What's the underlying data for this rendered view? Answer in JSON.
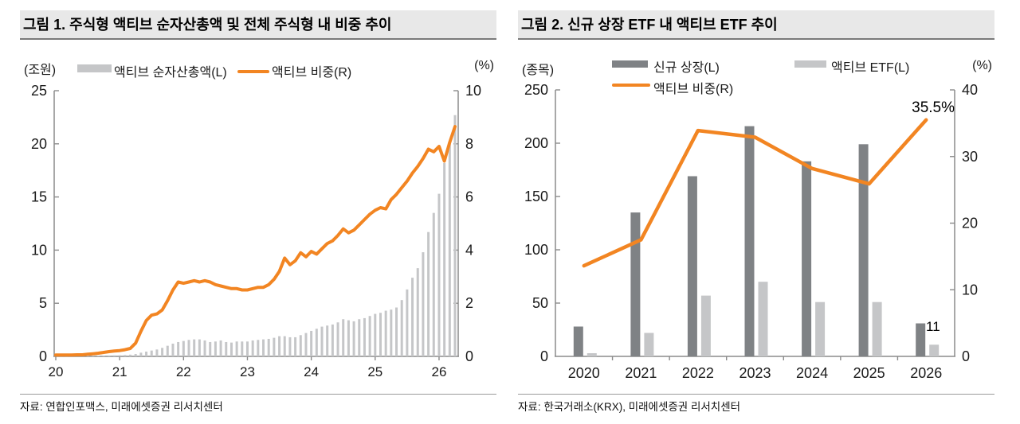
{
  "figure1": {
    "title": "그림 1. 주식형 액티브 순자산총액 및 전체 주식형 내 비중 추이",
    "source": "자료: 연합인포맥스, 미래에셋증권 리서치센터"
  },
  "figure2": {
    "title": "그림 2. 신규 상장 ETF 내 액티브 ETF 추이",
    "source": "자료: 한국거래소(KRX), 미래에셋증권 리서치센터"
  },
  "colors": {
    "orange": "#F28522",
    "light_gray_bar": "#c5c6c8",
    "dark_gray_bar": "#7f8285",
    "axis": "#8b8b8b"
  },
  "chart_data": [
    {
      "type": "bar+line",
      "title": "주식형 액티브 순자산총액 및 전체 주식형 내 비중 추이",
      "x": [
        "2020-01",
        "2020-02",
        "2020-03",
        "2020-04",
        "2020-05",
        "2020-06",
        "2020-07",
        "2020-08",
        "2020-09",
        "2020-10",
        "2020-11",
        "2020-12",
        "2021-01",
        "2021-02",
        "2021-03",
        "2021-04",
        "2021-05",
        "2021-06",
        "2021-07",
        "2021-08",
        "2021-09",
        "2021-10",
        "2021-11",
        "2021-12",
        "2022-01",
        "2022-02",
        "2022-03",
        "2022-04",
        "2022-05",
        "2022-06",
        "2022-07",
        "2022-08",
        "2022-09",
        "2022-10",
        "2022-11",
        "2022-12",
        "2023-01",
        "2023-02",
        "2023-03",
        "2023-04",
        "2023-05",
        "2023-06",
        "2023-07",
        "2023-08",
        "2023-09",
        "2023-10",
        "2023-11",
        "2023-12",
        "2024-01",
        "2024-02",
        "2024-03",
        "2024-04",
        "2024-05",
        "2024-06",
        "2024-07",
        "2024-08",
        "2024-09",
        "2024-10",
        "2024-11",
        "2024-12",
        "2025-01",
        "2025-02",
        "2025-03",
        "2025-04",
        "2025-05",
        "2025-06",
        "2025-07",
        "2025-08",
        "2025-09",
        "2025-10",
        "2025-11",
        "2025-12",
        "2026-01",
        "2026-02",
        "2026-03",
        "2026-04"
      ],
      "x_ticks": [
        {
          "index": 0,
          "label": "20"
        },
        {
          "index": 12,
          "label": "21"
        },
        {
          "index": 24,
          "label": "22"
        },
        {
          "index": 36,
          "label": "23"
        },
        {
          "index": 48,
          "label": "24"
        },
        {
          "index": 60,
          "label": "25"
        },
        {
          "index": 72,
          "label": "26"
        }
      ],
      "series": [
        {
          "name": "액티브 순자산총액(L)",
          "type": "bar",
          "axis": "left",
          "color": "#c5c6c8",
          "values": [
            0.04,
            0.04,
            0.04,
            0.05,
            0.05,
            0.05,
            0.06,
            0.06,
            0.07,
            0.08,
            0.09,
            0.1,
            0.11,
            0.13,
            0.16,
            0.22,
            0.35,
            0.45,
            0.55,
            0.65,
            0.8,
            1.0,
            1.2,
            1.35,
            1.45,
            1.55,
            1.6,
            1.6,
            1.5,
            1.35,
            1.4,
            1.5,
            1.35,
            1.3,
            1.4,
            1.4,
            1.4,
            1.5,
            1.55,
            1.6,
            1.65,
            1.75,
            1.9,
            1.9,
            1.8,
            1.8,
            2.0,
            2.2,
            2.4,
            2.6,
            2.8,
            2.9,
            3.0,
            3.2,
            3.5,
            3.4,
            3.3,
            3.5,
            3.6,
            3.8,
            4.0,
            4.1,
            4.3,
            4.4,
            4.6,
            5.3,
            6.3,
            7.4,
            8.3,
            9.8,
            11.7,
            13.5,
            15.3,
            18.2,
            20.1,
            22.7
          ]
        },
        {
          "name": "액티브 비중(R)",
          "type": "line",
          "axis": "right",
          "color": "#F28522",
          "values": [
            0.05,
            0.05,
            0.05,
            0.05,
            0.06,
            0.06,
            0.08,
            0.1,
            0.12,
            0.15,
            0.18,
            0.2,
            0.22,
            0.25,
            0.3,
            0.5,
            0.95,
            1.35,
            1.55,
            1.6,
            1.75,
            2.1,
            2.5,
            2.8,
            2.75,
            2.8,
            2.85,
            2.8,
            2.85,
            2.8,
            2.7,
            2.65,
            2.6,
            2.55,
            2.55,
            2.5,
            2.5,
            2.55,
            2.6,
            2.6,
            2.7,
            2.9,
            3.2,
            3.7,
            3.45,
            3.6,
            3.9,
            3.75,
            3.95,
            3.85,
            4.05,
            4.25,
            4.35,
            4.55,
            4.8,
            4.65,
            4.75,
            4.95,
            5.15,
            5.35,
            5.5,
            5.6,
            5.55,
            5.9,
            6.1,
            6.35,
            6.6,
            6.9,
            7.15,
            7.45,
            7.8,
            7.7,
            7.9,
            7.35,
            8.05,
            8.65
          ]
        }
      ],
      "left_axis": {
        "label": "(조원)",
        "min": 0,
        "max": 25,
        "ticks": [
          0,
          5,
          10,
          15,
          20,
          25
        ]
      },
      "right_axis": {
        "label": "(%)",
        "min": 0,
        "max": 10,
        "ticks": [
          0,
          2,
          4,
          6,
          8,
          10
        ]
      },
      "grid": false,
      "legend_position": "top"
    },
    {
      "type": "bar+line",
      "title": "신규 상장 ETF 내 액티브 ETF 추이",
      "categories": [
        "2020",
        "2021",
        "2022",
        "2023",
        "2024",
        "2025",
        "2026"
      ],
      "series": [
        {
          "name": "신규 상장(L)",
          "type": "bar",
          "axis": "left",
          "color": "#7f8285",
          "values": [
            28,
            135,
            169,
            216,
            183,
            199,
            31
          ]
        },
        {
          "name": "액티브 ETF(L)",
          "type": "bar",
          "axis": "left",
          "color": "#c5c6c8",
          "values": [
            3,
            22,
            57,
            70,
            51,
            51,
            11
          ]
        },
        {
          "name": "액티브 비중(R)",
          "type": "line",
          "axis": "right",
          "color": "#F28522",
          "values": [
            13.6,
            17.5,
            33.9,
            32.9,
            28.2,
            25.9,
            35.5
          ]
        }
      ],
      "left_axis": {
        "label": "(종목)",
        "min": 0,
        "max": 250,
        "ticks": [
          0,
          50,
          100,
          150,
          200,
          250
        ]
      },
      "right_axis": {
        "label": "(%)",
        "min": 0,
        "max": 40,
        "ticks": [
          0,
          10,
          20,
          30,
          40
        ]
      },
      "grid": false,
      "legend_position": "top",
      "annotations": [
        {
          "text": "35.5%",
          "target": "액티브 비중(R) 2026"
        },
        {
          "text": "11",
          "target": "액티브 ETF(L) 2026"
        }
      ]
    }
  ]
}
